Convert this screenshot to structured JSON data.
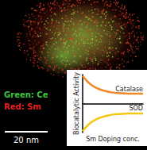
{
  "image": {
    "legend": [
      {
        "text": "Green: Ce",
        "color": "#3ec43e"
      },
      {
        "text": "Red: Sm",
        "color": "#e02020"
      }
    ],
    "scale_bar": "20 nm"
  },
  "chart_data": {
    "type": "line",
    "x_label": "Sm Doping conc.",
    "y_label": "Biocatalytic Activity",
    "x": [
      0,
      1,
      2,
      3,
      4,
      5,
      6,
      7,
      8,
      9,
      10
    ],
    "series": [
      {
        "name": "Catalase",
        "color": "#f08a24",
        "values": [
          0.95,
          0.72,
          0.57,
          0.48,
          0.42,
          0.38,
          0.36,
          0.35,
          0.34,
          0.34,
          0.34
        ]
      },
      {
        "name": "SOD",
        "color": "#f2c814",
        "values": [
          -0.95,
          -0.72,
          -0.57,
          -0.48,
          -0.42,
          -0.38,
          -0.36,
          -0.35,
          -0.34,
          -0.34,
          -0.34
        ]
      }
    ],
    "xlim": [
      0,
      10
    ],
    "ylim": [
      -1,
      1
    ],
    "grid": false,
    "tick_labels": false
  }
}
